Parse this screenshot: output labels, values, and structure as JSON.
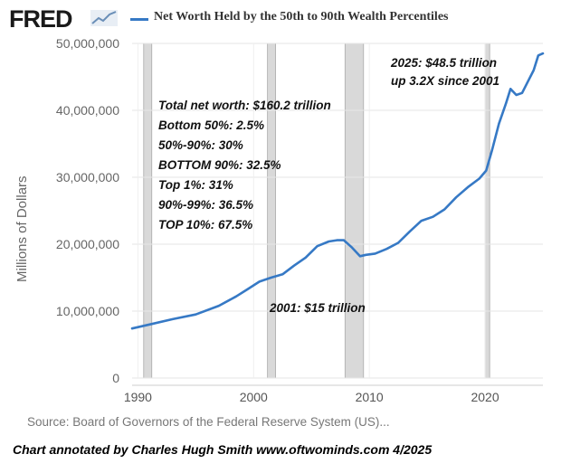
{
  "header": {
    "logo_text": "FRED",
    "legend_label": "Net Worth Held by the 50th to 90th Wealth Percentiles",
    "series_color": "#3679c5"
  },
  "axes": {
    "ylabel": "Millions of Dollars",
    "y_ticks": [
      "0",
      "10,000,000",
      "20,000,000",
      "30,000,000",
      "40,000,000",
      "50,000,000"
    ],
    "x_ticks": [
      "1990",
      "2000",
      "2010",
      "2020"
    ]
  },
  "footer": {
    "source": "Source: Board of Governors of the Federal Reserve System (US)...",
    "credit": "Chart annotated by Charles Hugh Smith  www.oftwominds.com  4/2025"
  },
  "annotations": {
    "top_right_1": "2025: $48.5 trillion",
    "top_right_2": "up 3.2X since 2001",
    "stats": [
      "Total net worth:  $160.2 trillion",
      "Bottom 50%:  2.5%",
      "50%-90%:  30%",
      "BOTTOM 90%:  32.5%",
      "Top 1%: 31%",
      "90%-99%: 36.5%",
      "TOP 10%:  67.5%"
    ],
    "mid": "2001: $15 trillion"
  },
  "chart_data": {
    "type": "line",
    "title": "Net Worth Held by the 50th to 90th Wealth Percentiles",
    "ylabel": "Millions of Dollars",
    "xlabel": "",
    "xlim": [
      1989.5,
      2025.0
    ],
    "ylim": [
      0,
      50000000
    ],
    "grid": true,
    "recessions": [
      [
        1990.5,
        1991.2
      ],
      [
        2001.2,
        2001.9
      ],
      [
        2007.9,
        2009.5
      ],
      [
        2020.0,
        2020.4
      ]
    ],
    "series": [
      {
        "name": "Net Worth Held by the 50th to 90th Wealth Percentiles",
        "color": "#3679c5",
        "x": [
          1989.5,
          1991,
          1993,
          1995,
          1997,
          1998.5,
          1999.5,
          2000.5,
          2001.5,
          2002.5,
          2003.5,
          2004.5,
          2005.5,
          2006.5,
          2007.2,
          2007.8,
          2008.5,
          2009.2,
          2009.7,
          2010.5,
          2011.5,
          2012.5,
          2013.5,
          2014.5,
          2015.5,
          2016.5,
          2017.5,
          2018.5,
          2019.5,
          2020.1,
          2020.6,
          2021.2,
          2021.8,
          2022.2,
          2022.7,
          2023.2,
          2023.7,
          2024.2,
          2024.6,
          2025.0
        ],
        "values": [
          7400000,
          8000000,
          8800000,
          9500000,
          10800000,
          12200000,
          13300000,
          14400000,
          15000000,
          15500000,
          16800000,
          18000000,
          19700000,
          20400000,
          20600000,
          20600000,
          19500000,
          18200000,
          18400000,
          18600000,
          19300000,
          20200000,
          21900000,
          23500000,
          24100000,
          25200000,
          27000000,
          28500000,
          29800000,
          31000000,
          34000000,
          38000000,
          41000000,
          43200000,
          42300000,
          42600000,
          44300000,
          46000000,
          48200000,
          48500000
        ]
      }
    ]
  }
}
